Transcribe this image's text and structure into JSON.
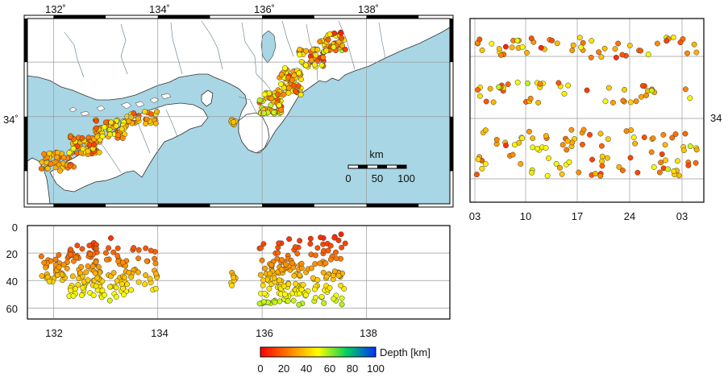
{
  "map": {
    "lon_ticks": [
      "132˚",
      "134˚",
      "136˚",
      "138˚"
    ],
    "lat_ticks": [
      "34˚"
    ],
    "lon_range": [
      131.5,
      139.6
    ],
    "lat_range": [
      32.4,
      35.8
    ],
    "sea_color": "#a9d6e5",
    "land_color": "#ffffff",
    "scalebar": {
      "unit": "km",
      "labels": [
        "0",
        "50",
        "100"
      ]
    }
  },
  "cross_section": {
    "x_ticks": [
      "132",
      "134",
      "136",
      "138"
    ],
    "y_ticks": [
      "0",
      "20",
      "40",
      "60"
    ],
    "x_range": [
      131.5,
      139.6
    ],
    "depth_range": [
      0,
      68
    ]
  },
  "time_panel": {
    "x_ticks": [
      "03",
      "10",
      "17",
      "24",
      "03"
    ],
    "y_tick": "34"
  },
  "colorbar": {
    "label": "Depth [km]",
    "ticks": [
      "0",
      "20",
      "40",
      "60",
      "80",
      "100"
    ],
    "range": [
      0,
      100
    ],
    "stops": [
      "#ff0000",
      "#ff8000",
      "#ffff00",
      "#00d060",
      "#0030ff"
    ]
  },
  "seismicity_clusters": [
    {
      "lon": [
        131.7,
        132.4
      ],
      "lat": [
        33.0,
        33.35
      ],
      "dep": [
        18,
        42
      ],
      "n": 45
    },
    {
      "lon": [
        132.3,
        132.9
      ],
      "lat": [
        33.3,
        33.65
      ],
      "dep": [
        12,
        52
      ],
      "n": 60
    },
    {
      "lon": [
        132.8,
        133.4
      ],
      "lat": [
        33.6,
        33.95
      ],
      "dep": [
        8,
        55
      ],
      "n": 55
    },
    {
      "lon": [
        133.4,
        134.0
      ],
      "lat": [
        33.85,
        34.1
      ],
      "dep": [
        15,
        48
      ],
      "n": 30
    },
    {
      "lon": [
        135.4,
        135.5
      ],
      "lat": [
        33.85,
        33.95
      ],
      "dep": [
        30,
        46
      ],
      "n": 8
    },
    {
      "lon": [
        135.95,
        136.4
      ],
      "lat": [
        34.05,
        34.45
      ],
      "dep": [
        10,
        58
      ],
      "n": 55
    },
    {
      "lon": [
        136.3,
        136.75
      ],
      "lat": [
        34.4,
        34.9
      ],
      "dep": [
        8,
        55
      ],
      "n": 55
    },
    {
      "lon": [
        136.7,
        137.2
      ],
      "lat": [
        34.9,
        35.25
      ],
      "dep": [
        8,
        58
      ],
      "n": 40
    },
    {
      "lon": [
        137.1,
        137.6
      ],
      "lat": [
        35.2,
        35.55
      ],
      "dep": [
        6,
        58
      ],
      "n": 45
    }
  ]
}
